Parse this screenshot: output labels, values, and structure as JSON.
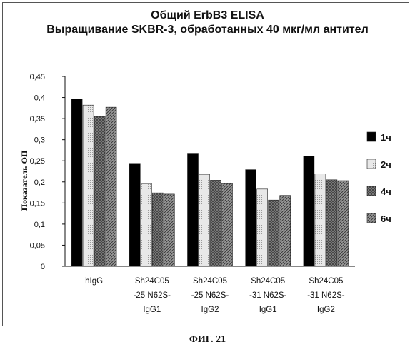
{
  "chart_data": {
    "type": "bar",
    "title": [
      "Общий ErbB3 ELISA",
      "Выращивание SKBR-3, обработанных 40 мкг/мл антител"
    ],
    "ylabel": "Показатель ОП",
    "xlabel": "",
    "ylim": [
      0,
      0.45
    ],
    "yticks": [
      "0",
      "0,05",
      "0,1",
      "0,15",
      "0,2",
      "0,25",
      "0,3",
      "0,35",
      "0,4",
      "0,45"
    ],
    "categories": [
      [
        "hIgG"
      ],
      [
        "Sh24C05",
        "-25 N62S-",
        "IgG1"
      ],
      [
        "Sh24C05",
        "-25 N62S-",
        "IgG2"
      ],
      [
        "Sh24C05",
        "-31 N62S-",
        "IgG1"
      ],
      [
        "Sh24C05",
        "-31 N62S-",
        "IgG2"
      ]
    ],
    "series": [
      {
        "name": "1ч",
        "values": [
          0.397,
          0.244,
          0.268,
          0.229,
          0.261
        ],
        "color": "#000000",
        "pattern": "solid"
      },
      {
        "name": "2ч",
        "values": [
          0.382,
          0.196,
          0.218,
          0.183,
          0.219
        ],
        "color": "#d9d9d9",
        "pattern": "dots"
      },
      {
        "name": "4ч",
        "values": [
          0.355,
          0.174,
          0.204,
          0.157,
          0.205
        ],
        "color": "#7f7f7f",
        "pattern": "crosshatch"
      },
      {
        "name": "6ч",
        "values": [
          0.377,
          0.171,
          0.196,
          0.168,
          0.203
        ],
        "color": "#808080",
        "pattern": "diagonal"
      }
    ],
    "legend": "right",
    "grid": false
  },
  "caption": "ФИГ. 21"
}
